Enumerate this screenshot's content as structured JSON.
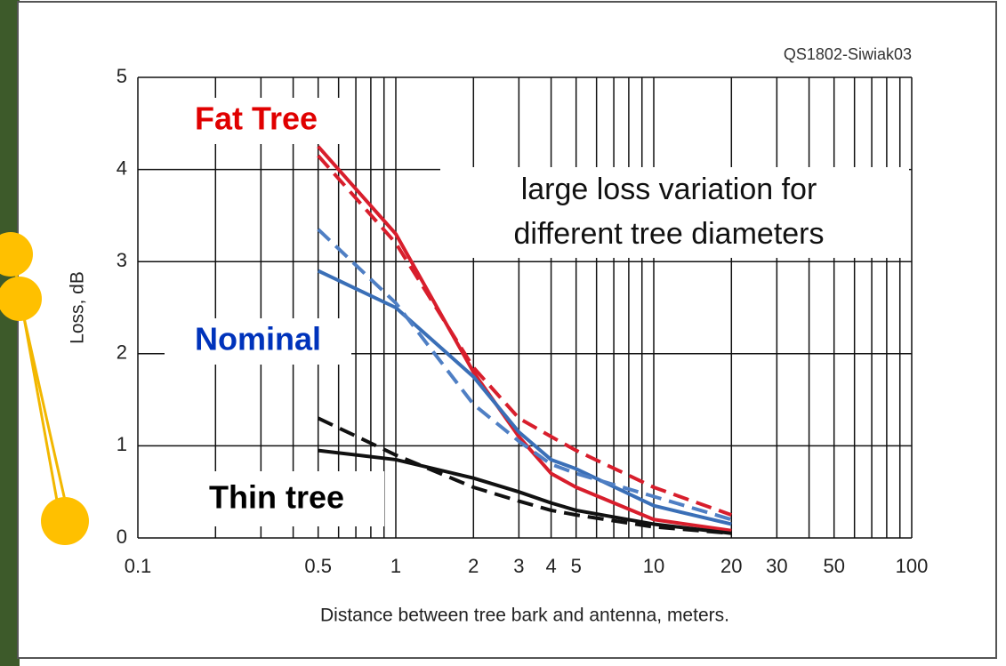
{
  "chart_data": {
    "type": "line",
    "source": "QS1802-Siwiak03",
    "x_label": "Distance between tree bark and antenna, meters.",
    "y_label": "Loss, dB",
    "xscale": "log",
    "xlim": [
      0.1,
      100
    ],
    "xticks": [
      0.1,
      0.5,
      1,
      2,
      3,
      4,
      5,
      10,
      20,
      30,
      50,
      100
    ],
    "xminor": [
      0.2,
      0.3,
      0.4,
      0.6,
      0.7,
      0.8,
      0.9,
      6,
      7,
      8,
      9,
      40,
      60,
      70,
      80,
      90
    ],
    "ylim": [
      0,
      5
    ],
    "yticks": [
      0,
      1,
      2,
      3,
      4,
      5
    ],
    "grid": true,
    "x": [
      0.5,
      1,
      2,
      3,
      4,
      5,
      10,
      20
    ],
    "series": [
      {
        "color": "#d81e2c",
        "dash": false,
        "values": [
          4.25,
          3.3,
          1.8,
          1.1,
          0.7,
          0.55,
          0.2,
          0.08
        ]
      },
      {
        "color": "#d81e2c",
        "dash": true,
        "values": [
          4.15,
          3.2,
          1.85,
          1.3,
          1.1,
          0.95,
          0.55,
          0.25
        ]
      },
      {
        "color": "#3a6fb7",
        "dash": false,
        "values": [
          2.9,
          2.5,
          1.75,
          1.15,
          0.85,
          0.75,
          0.35,
          0.15
        ]
      },
      {
        "color": "#4f7fc4",
        "dash": true,
        "values": [
          3.35,
          2.55,
          1.45,
          1.05,
          0.8,
          0.7,
          0.45,
          0.2
        ]
      },
      {
        "color": "#111111",
        "dash": false,
        "values": [
          0.95,
          0.85,
          0.65,
          0.5,
          0.38,
          0.3,
          0.15,
          0.05
        ]
      },
      {
        "color": "#111111",
        "dash": true,
        "values": [
          1.3,
          0.9,
          0.55,
          0.4,
          0.3,
          0.25,
          0.12,
          0.05
        ]
      }
    ],
    "annotations": [
      {
        "text": "Fat Tree",
        "color": "#e00000"
      },
      {
        "text": "Nominal",
        "color": "#0033bb"
      },
      {
        "text": "Thin tree",
        "color": "#000000"
      }
    ],
    "callout": [
      "large loss variation for",
      "different tree diameters"
    ]
  }
}
